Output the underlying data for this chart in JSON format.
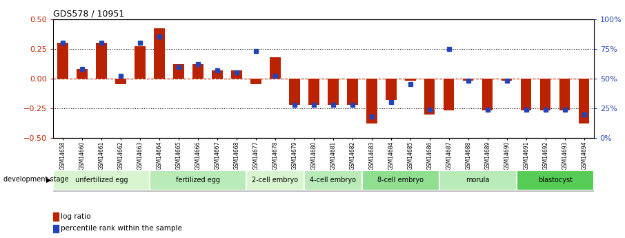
{
  "title": "GDS578 / 10951",
  "samples": [
    "GSM14658",
    "GSM14660",
    "GSM14661",
    "GSM14662",
    "GSM14663",
    "GSM14664",
    "GSM14665",
    "GSM14666",
    "GSM14667",
    "GSM14668",
    "GSM14677",
    "GSM14678",
    "GSM14679",
    "GSM14680",
    "GSM14681",
    "GSM14682",
    "GSM14683",
    "GSM14684",
    "GSM14685",
    "GSM14686",
    "GSM14687",
    "GSM14688",
    "GSM14689",
    "GSM14690",
    "GSM14691",
    "GSM14692",
    "GSM14693",
    "GSM14694"
  ],
  "log_ratio": [
    0.3,
    0.08,
    0.3,
    -0.05,
    0.27,
    0.42,
    0.12,
    0.12,
    0.07,
    0.07,
    -0.05,
    0.18,
    -0.22,
    -0.22,
    -0.22,
    -0.22,
    -0.38,
    -0.18,
    -0.02,
    -0.3,
    -0.27,
    -0.02,
    -0.27,
    -0.02,
    -0.27,
    -0.27,
    -0.27,
    -0.38
  ],
  "percentile_rank": [
    80,
    58,
    80,
    52,
    80,
    85,
    60,
    62,
    57,
    55,
    73,
    52,
    28,
    28,
    28,
    28,
    18,
    30,
    45,
    24,
    75,
    48,
    24,
    48,
    24,
    24,
    24,
    20
  ],
  "stages": [
    {
      "label": "unfertilized egg",
      "start": 0,
      "end": 5,
      "color": "#d8f5d0"
    },
    {
      "label": "fertilized egg",
      "start": 5,
      "end": 10,
      "color": "#b8ebb8"
    },
    {
      "label": "2-cell embryo",
      "start": 10,
      "end": 13,
      "color": "#d8f5d0"
    },
    {
      "label": "4-cell embryo",
      "start": 13,
      "end": 16,
      "color": "#b8ebb8"
    },
    {
      "label": "8-cell embryo",
      "start": 16,
      "end": 20,
      "color": "#90de90"
    },
    {
      "label": "morula",
      "start": 20,
      "end": 24,
      "color": "#b8ebb8"
    },
    {
      "label": "blastocyst",
      "start": 24,
      "end": 28,
      "color": "#55cc55"
    }
  ],
  "bar_color": "#bb2200",
  "dot_color": "#2244bb",
  "ylim": [
    -0.5,
    0.5
  ],
  "y2lim": [
    0,
    100
  ],
  "y2ticks": [
    0,
    25,
    50,
    75,
    100
  ],
  "yticks": [
    -0.5,
    -0.25,
    0,
    0.25,
    0.5
  ],
  "legend_log_ratio": "log ratio",
  "legend_percentile": "percentile rank within the sample"
}
